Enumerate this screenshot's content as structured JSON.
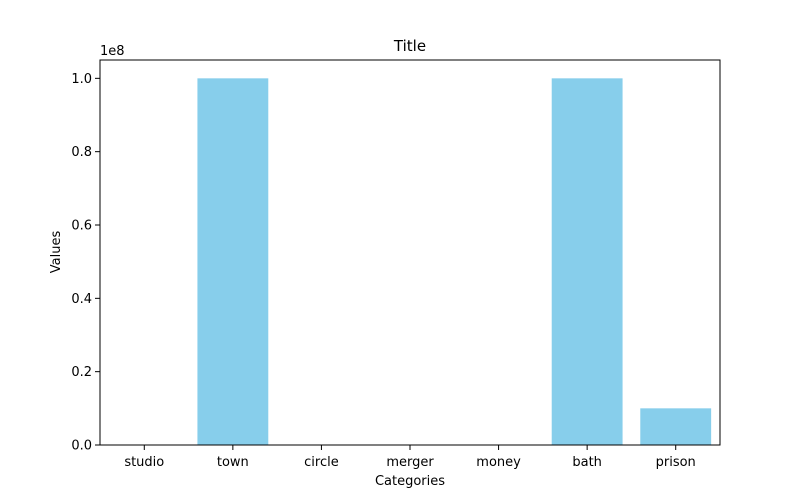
{
  "chart_data": {
    "type": "bar",
    "title": "Title",
    "xlabel": "Categories",
    "ylabel": "Values",
    "y_offset_label": "1e8",
    "categories": [
      "studio",
      "town",
      "circle",
      "merger",
      "money",
      "bath",
      "prison"
    ],
    "values": [
      0,
      100000000,
      0,
      0,
      0,
      100000000,
      10000000
    ],
    "ylim": [
      0,
      105000000
    ],
    "y_ticks": [
      0,
      20000000,
      40000000,
      60000000,
      80000000,
      100000000
    ],
    "y_tick_labels": [
      "0.0",
      "0.2",
      "0.4",
      "0.6",
      "0.8",
      "1.0"
    ],
    "bar_color": "#87ceeb",
    "grid": false
  }
}
